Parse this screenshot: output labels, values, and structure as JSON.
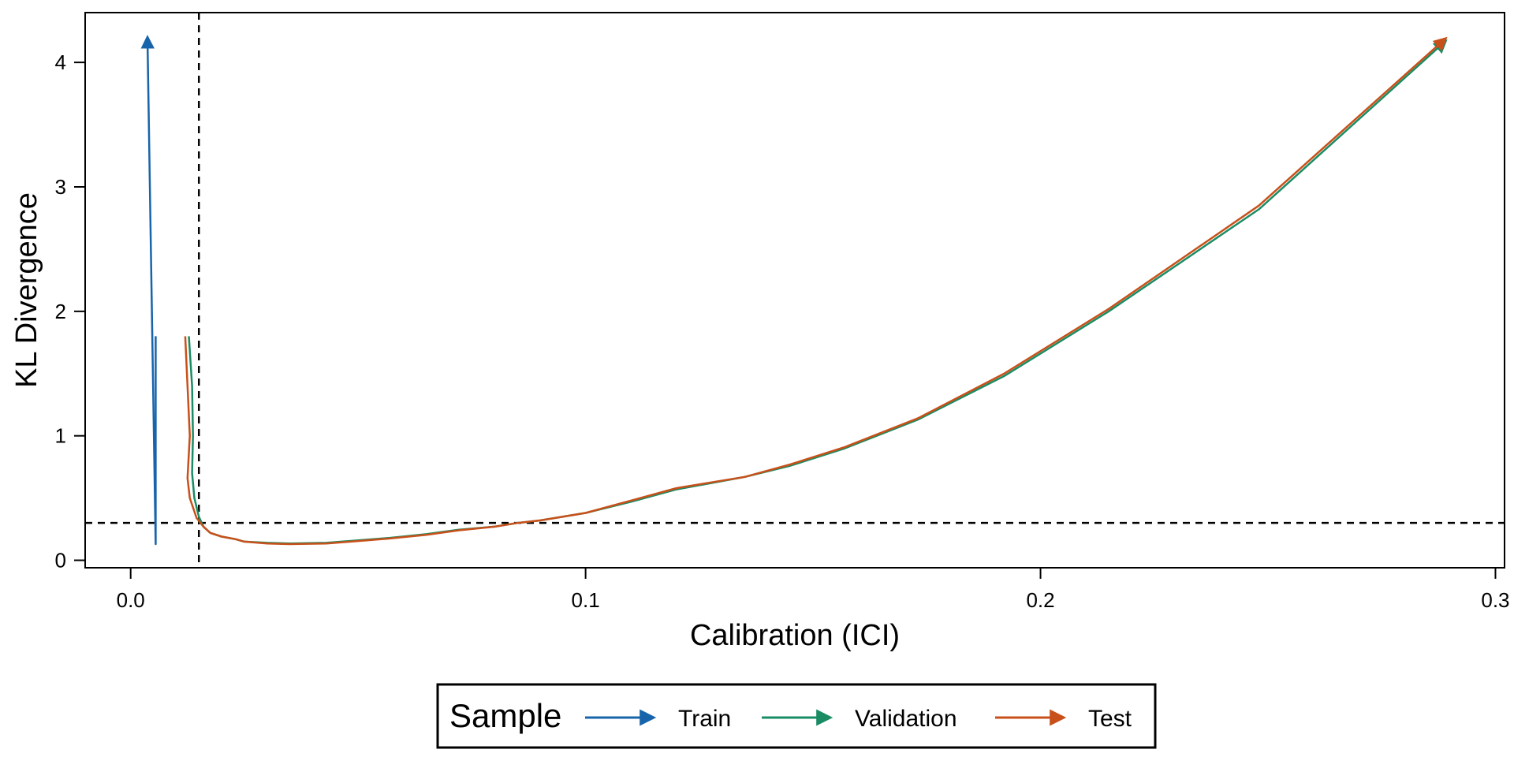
{
  "chart_data": {
    "type": "line",
    "title": "",
    "xlabel": "Calibration (ICI)",
    "ylabel": "KL Divergence",
    "xlim": [
      -0.01,
      0.302
    ],
    "ylim": [
      -0.06,
      4.4
    ],
    "x_ticks": [
      0.0,
      0.1,
      0.2,
      0.3
    ],
    "x_tick_labels": [
      "0.0",
      "0.1",
      "0.2",
      "0.3"
    ],
    "y_ticks": [
      0,
      1,
      2,
      3,
      4
    ],
    "y_tick_labels": [
      "0",
      "1",
      "2",
      "3",
      "4"
    ],
    "grid": false,
    "legend": {
      "title": "Sample",
      "placement": "bottom-center"
    },
    "reference_lines": [
      {
        "orientation": "vertical",
        "value": 0.015,
        "style": "dashed"
      },
      {
        "orientation": "horizontal",
        "value": 0.3,
        "style": "dashed"
      }
    ],
    "series": [
      {
        "name": "Train",
        "color": "#1764AB",
        "arrow_end": true,
        "points": [
          [
            0.0055,
            1.8
          ],
          [
            0.0055,
            0.13
          ],
          [
            0.0037,
            4.2
          ]
        ]
      },
      {
        "name": "Validation",
        "color": "#1A8C64",
        "arrow_end": true,
        "points": [
          [
            0.0128,
            1.8
          ],
          [
            0.0135,
            1.4
          ],
          [
            0.0137,
            1.0
          ],
          [
            0.0135,
            0.7
          ],
          [
            0.014,
            0.5
          ],
          [
            0.015,
            0.35
          ],
          [
            0.016,
            0.27
          ],
          [
            0.0175,
            0.22
          ],
          [
            0.02,
            0.19
          ],
          [
            0.023,
            0.17
          ],
          [
            0.025,
            0.15
          ],
          [
            0.03,
            0.14
          ],
          [
            0.035,
            0.135
          ],
          [
            0.043,
            0.14
          ],
          [
            0.05,
            0.16
          ],
          [
            0.057,
            0.18
          ],
          [
            0.065,
            0.21
          ],
          [
            0.072,
            0.245
          ],
          [
            0.08,
            0.27
          ],
          [
            0.085,
            0.3
          ],
          [
            0.09,
            0.32
          ],
          [
            0.1,
            0.38
          ],
          [
            0.11,
            0.47
          ],
          [
            0.12,
            0.57
          ],
          [
            0.135,
            0.67
          ],
          [
            0.145,
            0.76
          ],
          [
            0.157,
            0.9
          ],
          [
            0.173,
            1.13
          ],
          [
            0.192,
            1.48
          ],
          [
            0.215,
            2.0
          ],
          [
            0.248,
            2.82
          ],
          [
            0.289,
            4.17
          ]
        ]
      },
      {
        "name": "Test",
        "color": "#C8501A",
        "arrow_end": true,
        "points": [
          [
            0.012,
            1.8
          ],
          [
            0.0125,
            1.4
          ],
          [
            0.013,
            1.0
          ],
          [
            0.0125,
            0.66
          ],
          [
            0.013,
            0.5
          ],
          [
            0.0145,
            0.34
          ],
          [
            0.016,
            0.27
          ],
          [
            0.0175,
            0.22
          ],
          [
            0.02,
            0.19
          ],
          [
            0.023,
            0.17
          ],
          [
            0.025,
            0.15
          ],
          [
            0.03,
            0.135
          ],
          [
            0.035,
            0.13
          ],
          [
            0.043,
            0.135
          ],
          [
            0.05,
            0.155
          ],
          [
            0.057,
            0.175
          ],
          [
            0.065,
            0.205
          ],
          [
            0.072,
            0.24
          ],
          [
            0.08,
            0.27
          ],
          [
            0.085,
            0.3
          ],
          [
            0.09,
            0.32
          ],
          [
            0.1,
            0.38
          ],
          [
            0.11,
            0.48
          ],
          [
            0.12,
            0.58
          ],
          [
            0.135,
            0.67
          ],
          [
            0.145,
            0.77
          ],
          [
            0.157,
            0.91
          ],
          [
            0.173,
            1.14
          ],
          [
            0.192,
            1.5
          ],
          [
            0.215,
            2.02
          ],
          [
            0.248,
            2.85
          ],
          [
            0.289,
            4.19
          ]
        ]
      }
    ]
  }
}
